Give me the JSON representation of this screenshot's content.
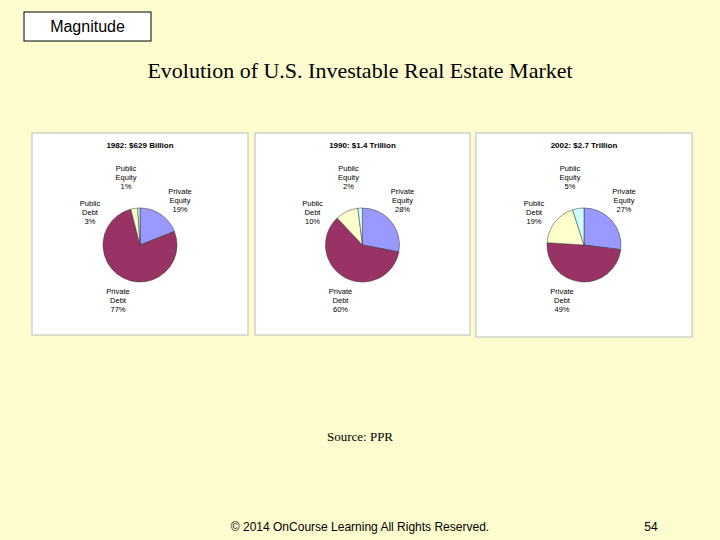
{
  "header": {
    "tag": "Magnitude",
    "title": "Evolution of U.S. Investable Real Estate Market"
  },
  "chart_data": [
    {
      "type": "pie",
      "title": "1982: $629 Billion",
      "categories": [
        "Private Equity",
        "Private Debt",
        "Public Debt",
        "Public Equity"
      ],
      "values": [
        19,
        77,
        3,
        1
      ],
      "value_labels": [
        "19%",
        "77%",
        "3%",
        "1%"
      ],
      "colors": [
        "#9999ff",
        "#993366",
        "#ffffcc",
        "#ccffff"
      ],
      "data_labels": true
    },
    {
      "type": "pie",
      "title": "1990: $1.4 Trillion",
      "categories": [
        "Private Equity",
        "Private Debt",
        "Public Debt",
        "Public Equity"
      ],
      "values": [
        28,
        60,
        10,
        2
      ],
      "value_labels": [
        "28%",
        "60%",
        "10%",
        "2%"
      ],
      "colors": [
        "#9999ff",
        "#993366",
        "#ffffcc",
        "#ccffff"
      ],
      "data_labels": true
    },
    {
      "type": "pie",
      "title": "2002: $2.7 Trillion",
      "categories": [
        "Private Equity",
        "Private Debt",
        "Public Debt",
        "Public Equity"
      ],
      "values": [
        27,
        49,
        19,
        5
      ],
      "value_labels": [
        "27%",
        "49%",
        "19%",
        "5%"
      ],
      "colors": [
        "#9999ff",
        "#993366",
        "#ffffcc",
        "#ccffff"
      ],
      "data_labels": true
    }
  ],
  "footer": {
    "source": "Source: PPR",
    "copyright": "© 2014 OnCourse Learning All Rights Reserved.",
    "page": 54
  }
}
